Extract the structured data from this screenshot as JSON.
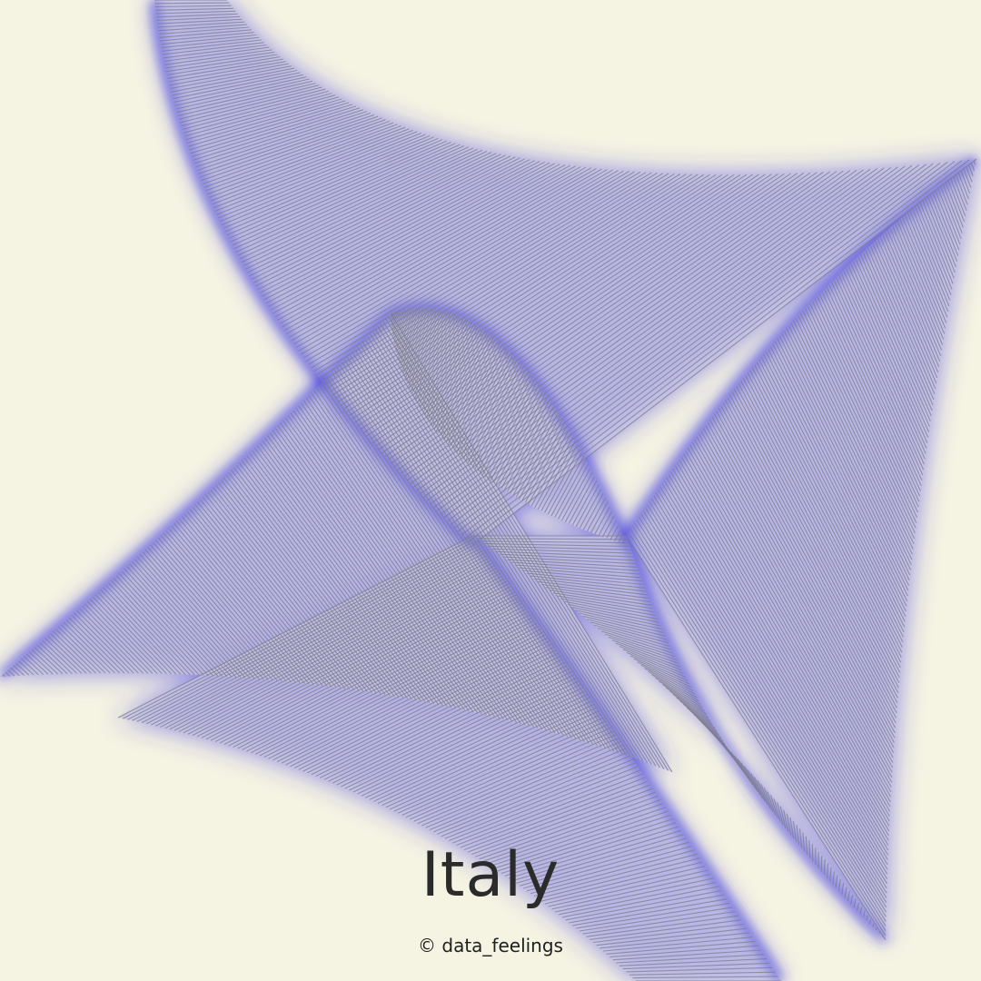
{
  "title": "Italy",
  "credit": "© data_feelings",
  "colors": {
    "background": "#f5f3e2",
    "glow": "#3a35e0",
    "fill": "#c6c4e6",
    "line": "#7d7c8c",
    "text": "#2b2b2b"
  }
}
